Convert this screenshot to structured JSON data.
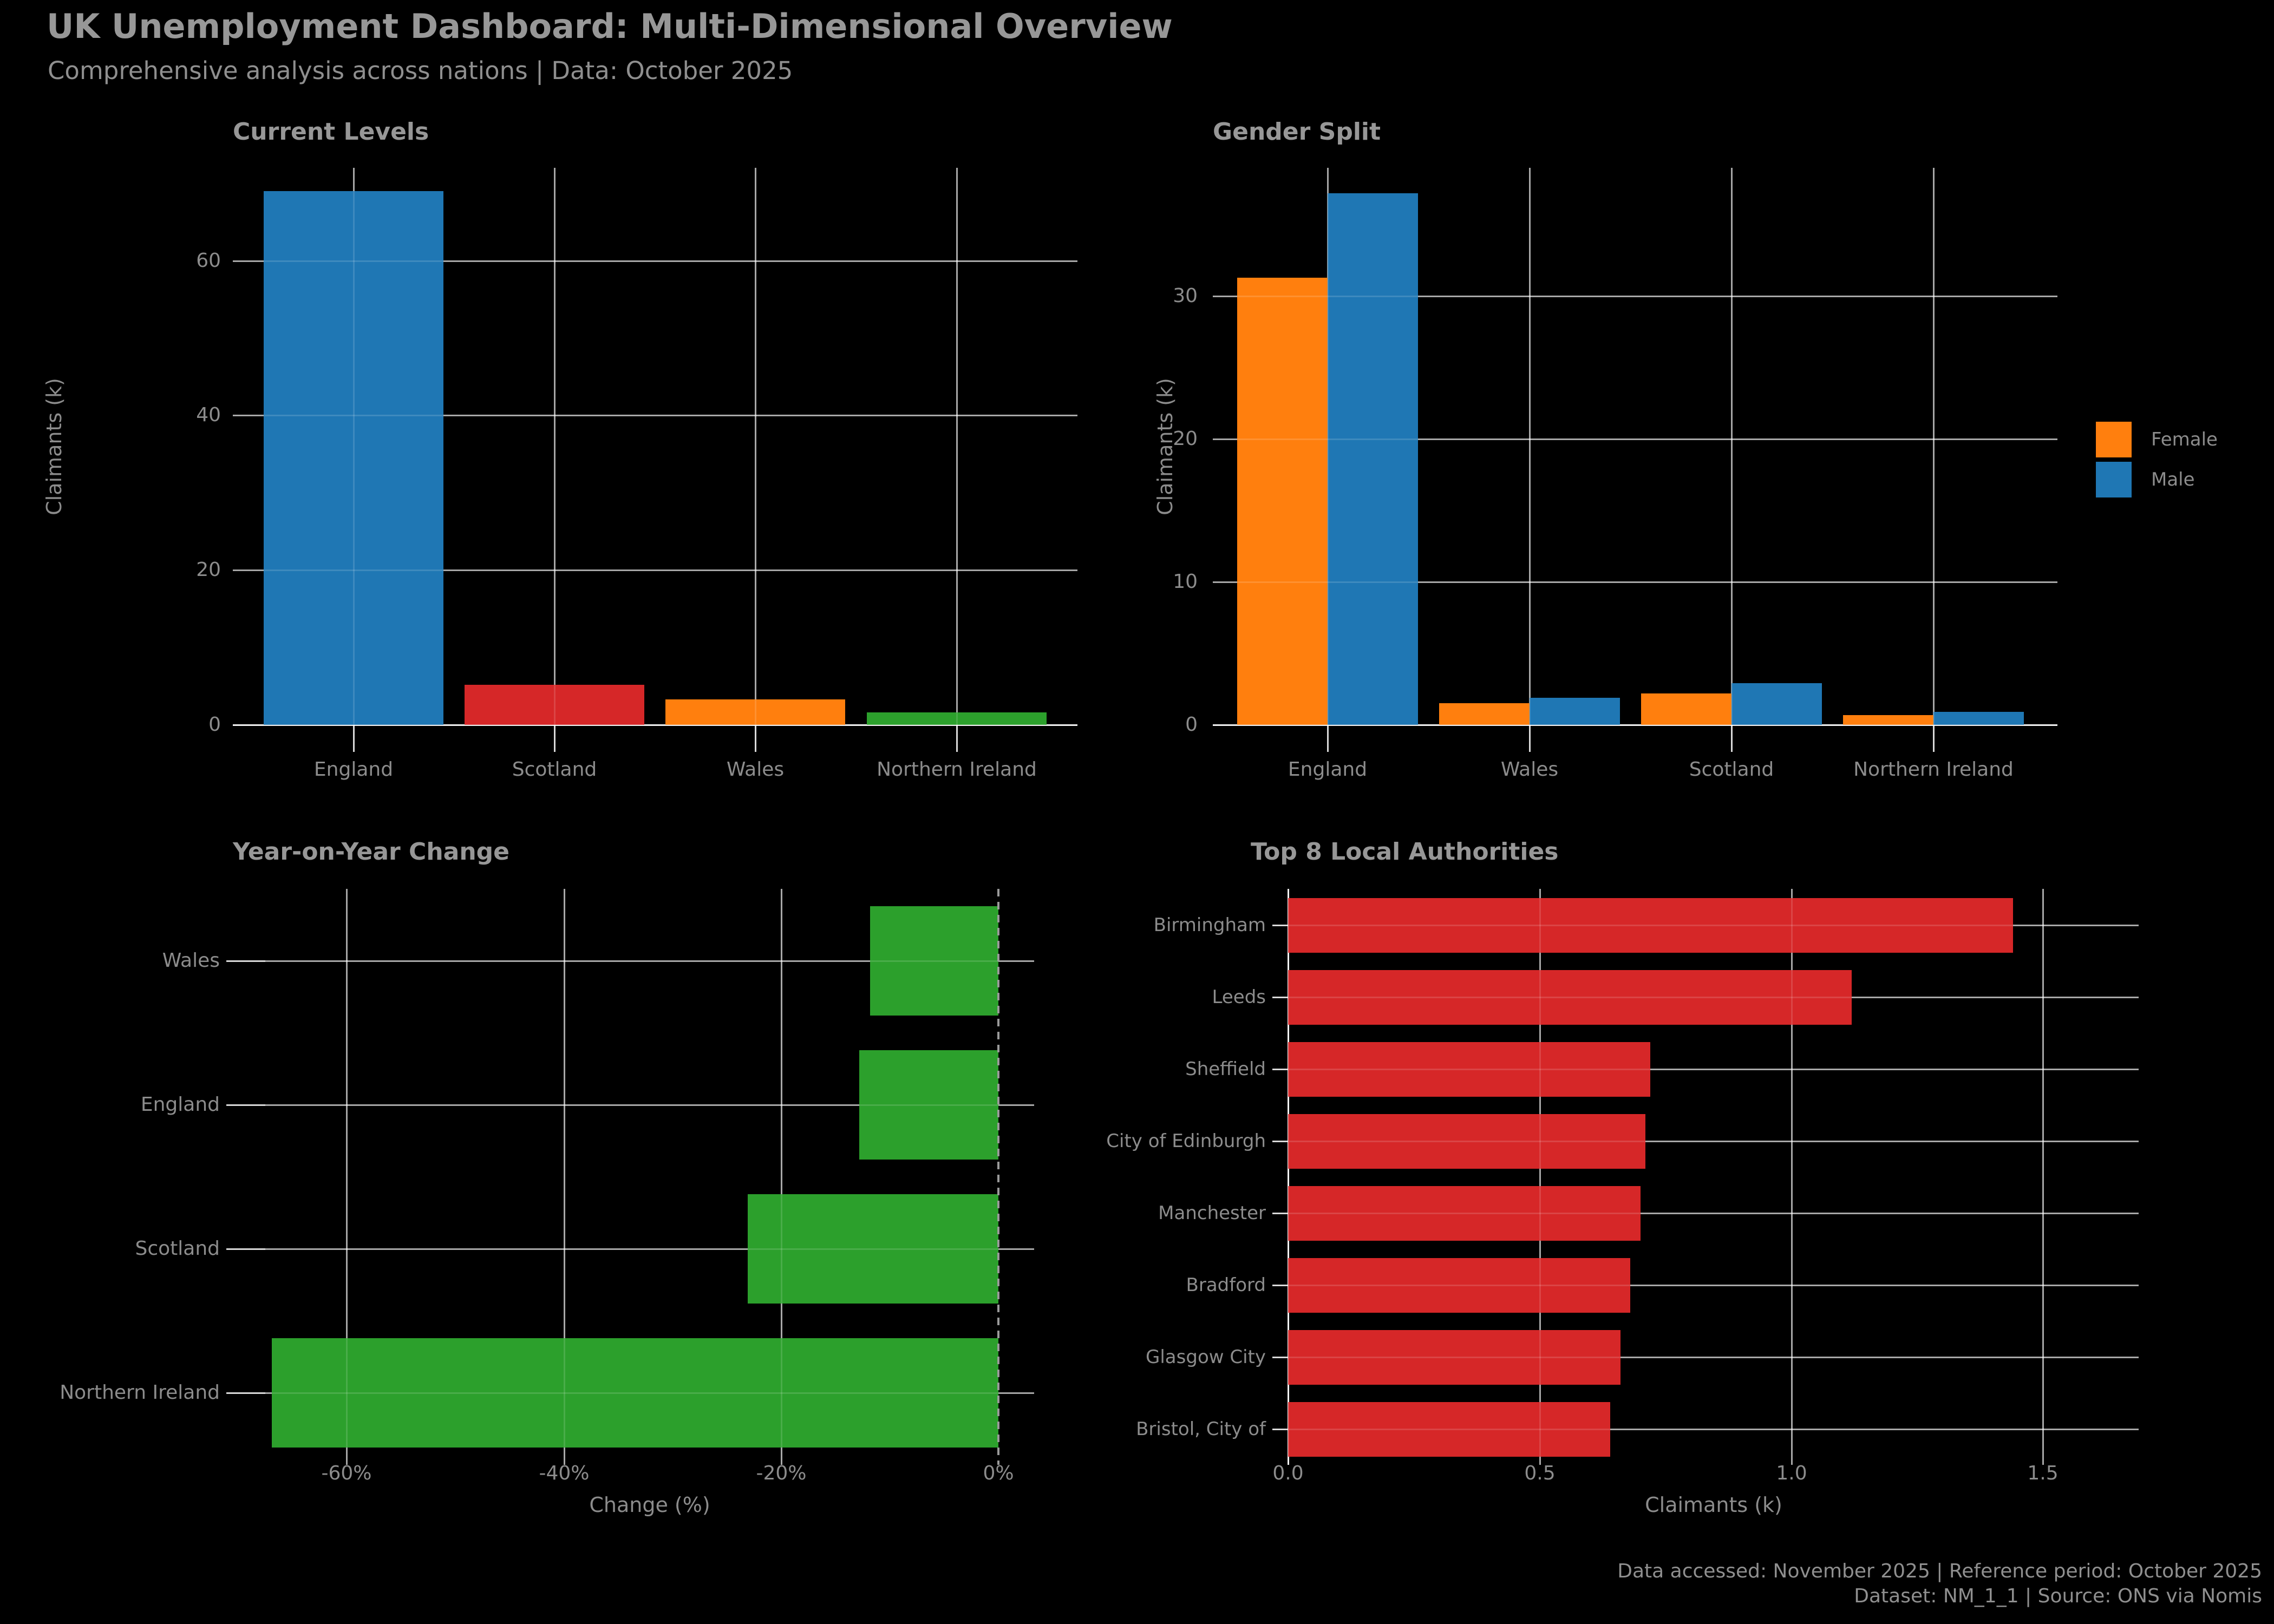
{
  "page": {
    "title": "UK Unemployment Dashboard: Multi-Dimensional Overview",
    "subtitle": "Comprehensive analysis across nations | Data: October 2025",
    "footer_line1": "Data accessed: November 2025 | Reference period: October 2025",
    "footer_line2": "Dataset: NM_1_1 | Source: ONS via Nomis"
  },
  "colors": {
    "background": "#000000",
    "text": "#8f8f8f",
    "blue": "#1f77b4",
    "orange": "#ff7f0e",
    "red": "#d62728",
    "green": "#2ca02c",
    "grid": "#ffffff"
  },
  "legend": {
    "items": [
      {
        "label": "Female",
        "color": "#ff7f0e"
      },
      {
        "label": "Male",
        "color": "#1f77b4"
      }
    ]
  },
  "chart_data": [
    {
      "id": "current_levels",
      "type": "bar",
      "title": "Current Levels",
      "ylabel": "Claimants (k)",
      "categories": [
        "England",
        "Scotland",
        "Wales",
        "Northern Ireland"
      ],
      "values": [
        69.0,
        5.2,
        3.3,
        1.6
      ],
      "bar_colors": [
        "#1f77b4",
        "#d62728",
        "#ff7f0e",
        "#2ca02c"
      ],
      "yticks": [
        0,
        20,
        40,
        60
      ],
      "ytick_labels": [
        "0",
        "20",
        "40",
        "60"
      ],
      "ylim": [
        0,
        72
      ],
      "grid": true
    },
    {
      "id": "gender_split",
      "type": "grouped_bar",
      "title": "Gender Split",
      "ylabel": "Claimants (k)",
      "categories": [
        "England",
        "Wales",
        "Scotland",
        "Northern Ireland"
      ],
      "series": [
        {
          "name": "Female",
          "color": "#ff7f0e",
          "values": [
            31.3,
            1.5,
            2.2,
            0.7
          ]
        },
        {
          "name": "Male",
          "color": "#1f77b4",
          "values": [
            37.2,
            1.9,
            2.9,
            0.9
          ]
        }
      ],
      "yticks": [
        0,
        10,
        20,
        30
      ],
      "ytick_labels": [
        "0",
        "10",
        "20",
        "30"
      ],
      "ylim": [
        0,
        39
      ],
      "legend_position": "right",
      "grid": true
    },
    {
      "id": "yoy_change",
      "type": "hbar",
      "title": "Year-on-Year Change",
      "xlabel": "Change (%)",
      "categories": [
        "Wales",
        "England",
        "Scotland",
        "Northern Ireland"
      ],
      "values": [
        -11.8,
        -12.8,
        -23.1,
        -66.9
      ],
      "bar_color": "#2ca02c",
      "xticks": [
        -60,
        -40,
        -20,
        0
      ],
      "xtick_labels": [
        "-60%",
        "-40%",
        "-20%",
        "0%"
      ],
      "xlim": [
        -67.5,
        3.3
      ],
      "zero_line": "dashed",
      "grid": true
    },
    {
      "id": "top8",
      "type": "hbar",
      "title": "Top 8 Local Authorities",
      "xlabel": "Claimants (k)",
      "categories": [
        "Birmingham",
        "Leeds",
        "Sheffield",
        "City of Edinburgh",
        "Manchester",
        "Bradford",
        "Glasgow City",
        "Bristol, City of"
      ],
      "values": [
        1.44,
        1.12,
        0.72,
        0.71,
        0.7,
        0.68,
        0.66,
        0.64
      ],
      "bar_color": "#d62728",
      "xticks": [
        0.0,
        0.5,
        1.0,
        1.5
      ],
      "xtick_labels": [
        "0.0",
        "0.5",
        "1.0",
        "1.5"
      ],
      "xlim": [
        0,
        1.69
      ],
      "zero_line": "solid",
      "grid": true
    }
  ]
}
